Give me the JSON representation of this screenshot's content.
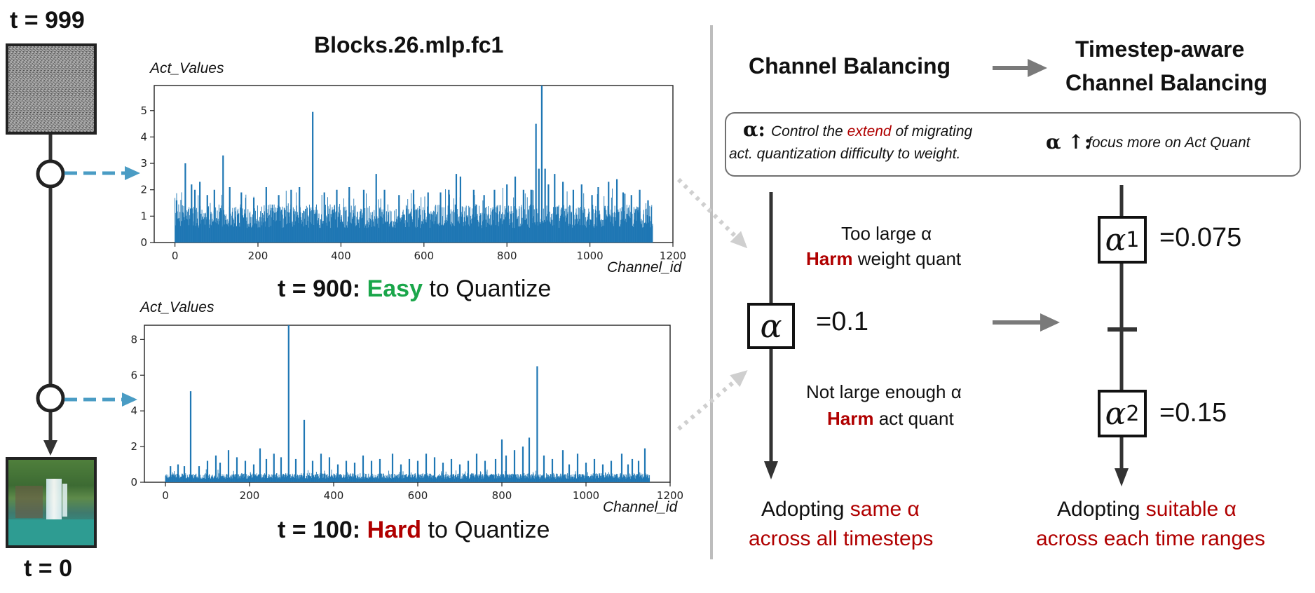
{
  "timeline": {
    "start_label": "t = 999",
    "end_label": "t = 0"
  },
  "chart_panel_title": "Blocks.26.mlp.fc1",
  "captions": {
    "top": {
      "prefix": "t = 900: ",
      "highlight": "Easy",
      "suffix": " to Quantize",
      "highlight_color": "#1aa64a"
    },
    "bottom": {
      "prefix": "t = 100: ",
      "highlight": "Hard",
      "suffix": " to Quantize",
      "highlight_color": "#b00000"
    }
  },
  "chart_data": [
    {
      "type": "bar",
      "ylabel": "Act_Values",
      "xlabel": "Channel_id",
      "xlim": [
        -50,
        1200
      ],
      "ylim": [
        0,
        5.95
      ],
      "xticks": [
        0,
        200,
        400,
        600,
        800,
        1000,
        1200
      ],
      "yticks": [
        0,
        1,
        2,
        3,
        4,
        5
      ],
      "color": "#1f77b4",
      "channels": 1152,
      "baseline": 1.0,
      "peaks": [
        {
          "x": 4,
          "y": 1.6
        },
        {
          "x": 25,
          "y": 3.0
        },
        {
          "x": 40,
          "y": 2.2
        },
        {
          "x": 48,
          "y": 2.0
        },
        {
          "x": 60,
          "y": 2.3
        },
        {
          "x": 78,
          "y": 1.8
        },
        {
          "x": 95,
          "y": 2.0
        },
        {
          "x": 116,
          "y": 3.3
        },
        {
          "x": 132,
          "y": 2.1
        },
        {
          "x": 160,
          "y": 1.9
        },
        {
          "x": 190,
          "y": 1.7
        },
        {
          "x": 220,
          "y": 2.1
        },
        {
          "x": 250,
          "y": 1.8
        },
        {
          "x": 280,
          "y": 2.0
        },
        {
          "x": 300,
          "y": 2.1
        },
        {
          "x": 332,
          "y": 4.95
        },
        {
          "x": 360,
          "y": 1.9
        },
        {
          "x": 390,
          "y": 2.0
        },
        {
          "x": 420,
          "y": 2.1
        },
        {
          "x": 455,
          "y": 2.0
        },
        {
          "x": 485,
          "y": 2.6
        },
        {
          "x": 505,
          "y": 2.0
        },
        {
          "x": 540,
          "y": 1.8
        },
        {
          "x": 575,
          "y": 2.0
        },
        {
          "x": 610,
          "y": 1.9
        },
        {
          "x": 640,
          "y": 1.9
        },
        {
          "x": 660,
          "y": 2.0
        },
        {
          "x": 678,
          "y": 2.6
        },
        {
          "x": 688,
          "y": 2.5
        },
        {
          "x": 720,
          "y": 2.0
        },
        {
          "x": 745,
          "y": 1.8
        },
        {
          "x": 770,
          "y": 2.0
        },
        {
          "x": 800,
          "y": 2.2
        },
        {
          "x": 820,
          "y": 2.5
        },
        {
          "x": 840,
          "y": 2.0
        },
        {
          "x": 860,
          "y": 2.0
        },
        {
          "x": 870,
          "y": 4.5
        },
        {
          "x": 877,
          "y": 2.8
        },
        {
          "x": 884,
          "y": 5.95
        },
        {
          "x": 892,
          "y": 2.8
        },
        {
          "x": 900,
          "y": 2.2
        },
        {
          "x": 915,
          "y": 2.6
        },
        {
          "x": 935,
          "y": 2.3
        },
        {
          "x": 960,
          "y": 2.0
        },
        {
          "x": 980,
          "y": 2.2
        },
        {
          "x": 1005,
          "y": 1.8
        },
        {
          "x": 1020,
          "y": 2.1
        },
        {
          "x": 1045,
          "y": 2.3
        },
        {
          "x": 1065,
          "y": 2.4
        },
        {
          "x": 1080,
          "y": 1.9
        },
        {
          "x": 1100,
          "y": 1.8
        },
        {
          "x": 1120,
          "y": 2.0
        },
        {
          "x": 1140,
          "y": 1.6
        }
      ]
    },
    {
      "type": "bar",
      "ylabel": "Act_Values",
      "xlabel": "Channel_id",
      "xlim": [
        -50,
        1200
      ],
      "ylim": [
        0,
        8.8
      ],
      "xticks": [
        0,
        200,
        400,
        600,
        800,
        1000,
        1200
      ],
      "yticks": [
        0,
        2,
        4,
        6,
        8
      ],
      "color": "#1f77b4",
      "channels": 1152,
      "baseline": 0.35,
      "peaks": [
        {
          "x": 12,
          "y": 0.9
        },
        {
          "x": 30,
          "y": 1.0
        },
        {
          "x": 45,
          "y": 0.9
        },
        {
          "x": 60,
          "y": 5.1
        },
        {
          "x": 80,
          "y": 0.9
        },
        {
          "x": 100,
          "y": 1.2
        },
        {
          "x": 120,
          "y": 1.5
        },
        {
          "x": 130,
          "y": 1.1
        },
        {
          "x": 150,
          "y": 1.8
        },
        {
          "x": 170,
          "y": 1.4
        },
        {
          "x": 190,
          "y": 1.2
        },
        {
          "x": 210,
          "y": 1.0
        },
        {
          "x": 225,
          "y": 1.9
        },
        {
          "x": 240,
          "y": 1.3
        },
        {
          "x": 258,
          "y": 1.6
        },
        {
          "x": 275,
          "y": 1.4
        },
        {
          "x": 293,
          "y": 8.8
        },
        {
          "x": 310,
          "y": 1.3
        },
        {
          "x": 330,
          "y": 3.5
        },
        {
          "x": 350,
          "y": 1.2
        },
        {
          "x": 370,
          "y": 1.6
        },
        {
          "x": 390,
          "y": 1.4
        },
        {
          "x": 410,
          "y": 1.0
        },
        {
          "x": 430,
          "y": 1.2
        },
        {
          "x": 450,
          "y": 1.1
        },
        {
          "x": 470,
          "y": 1.5
        },
        {
          "x": 490,
          "y": 1.2
        },
        {
          "x": 510,
          "y": 1.3
        },
        {
          "x": 540,
          "y": 1.6
        },
        {
          "x": 560,
          "y": 1.0
        },
        {
          "x": 580,
          "y": 1.3
        },
        {
          "x": 600,
          "y": 1.2
        },
        {
          "x": 620,
          "y": 1.6
        },
        {
          "x": 640,
          "y": 1.4
        },
        {
          "x": 660,
          "y": 1.1
        },
        {
          "x": 680,
          "y": 1.3
        },
        {
          "x": 700,
          "y": 1.0
        },
        {
          "x": 720,
          "y": 1.2
        },
        {
          "x": 740,
          "y": 1.6
        },
        {
          "x": 760,
          "y": 1.2
        },
        {
          "x": 785,
          "y": 1.3
        },
        {
          "x": 800,
          "y": 2.4
        },
        {
          "x": 810,
          "y": 1.5
        },
        {
          "x": 830,
          "y": 1.8
        },
        {
          "x": 850,
          "y": 2.0
        },
        {
          "x": 865,
          "y": 2.5
        },
        {
          "x": 884,
          "y": 6.5
        },
        {
          "x": 900,
          "y": 1.5
        },
        {
          "x": 920,
          "y": 1.3
        },
        {
          "x": 945,
          "y": 1.8
        },
        {
          "x": 960,
          "y": 1.0
        },
        {
          "x": 980,
          "y": 1.6
        },
        {
          "x": 1000,
          "y": 1.1
        },
        {
          "x": 1020,
          "y": 1.3
        },
        {
          "x": 1040,
          "y": 1.0
        },
        {
          "x": 1060,
          "y": 1.2
        },
        {
          "x": 1085,
          "y": 1.6
        },
        {
          "x": 1100,
          "y": 1.0
        },
        {
          "x": 1110,
          "y": 1.3
        },
        {
          "x": 1125,
          "y": 1.2
        },
        {
          "x": 1140,
          "y": 1.9
        }
      ]
    }
  ],
  "right": {
    "left_heading": "Channel Balancing",
    "right_heading_line1": "Timestep-aware",
    "right_heading_line2": "Channel Balancing",
    "info_box": {
      "alpha_label": "α:",
      "desc_pre": "Control the ",
      "desc_red": "extend",
      "desc_post": " of migrating",
      "desc_line2": "act. quantization difficulty to weight.",
      "alpha_up_label": "α ↑:",
      "alpha_up_desc": "focus more on Act Quant"
    },
    "single_alpha": {
      "symbol": "α",
      "value": "=0.1",
      "too_large_line1": "Too large α",
      "too_large_red": "Harm",
      "too_large_rest": " weight quant",
      "not_enough_line1": "Not large enough  α",
      "not_enough_red": "Harm",
      "not_enough_rest": " act quant",
      "footer_pre": "Adopting ",
      "footer_red": "same α",
      "footer_line2": "across all timesteps"
    },
    "multi_alpha": {
      "symbol": "α",
      "alpha1_sub": "1",
      "alpha1_value": "=0.075",
      "alpha2_sub": "2",
      "alpha2_value": "=0.15",
      "footer_pre": "Adopting ",
      "footer_red": "suitable α",
      "footer_line2": "across each time ranges"
    }
  },
  "colors": {
    "accent_red": "#b00000",
    "easy_green": "#1aa64a",
    "bar_blue": "#1f77b4",
    "dashed_arrow_blue": "#4a9cc4",
    "gray_arrow": "#7a7a7a"
  }
}
